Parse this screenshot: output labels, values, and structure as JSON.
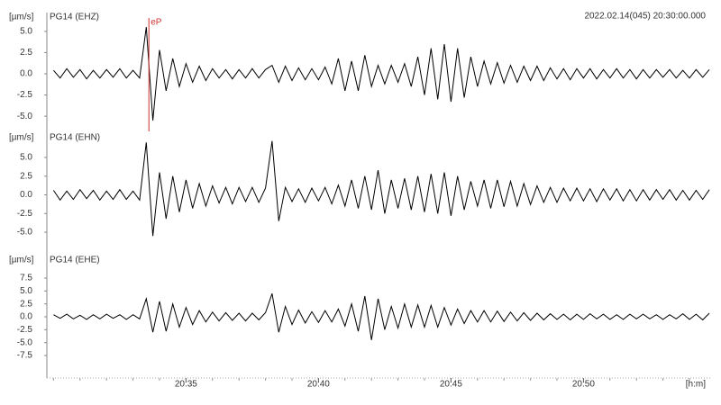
{
  "chart_data": {
    "type": "line",
    "timestamp": "2022.02.14(045) 20:30:00.000",
    "xlabel": "[h:m]",
    "ylabel": "[µm/s]",
    "xlim": [
      29.75,
      54.85
    ],
    "xticks": [
      {
        "value": 35,
        "label": "20:35"
      },
      {
        "value": 40,
        "label": "20:40"
      },
      {
        "value": 45,
        "label": "20:45"
      },
      {
        "value": 50,
        "label": "20:50"
      }
    ],
    "xminorticks": [
      30,
      31,
      32,
      33,
      34,
      35,
      36,
      37,
      38,
      39,
      40,
      41,
      42,
      43,
      44,
      45,
      46,
      47,
      48,
      49,
      50,
      51,
      52,
      53,
      54
    ],
    "x": [
      30,
      30.25,
      30.5,
      30.75,
      31,
      31.25,
      31.5,
      31.75,
      32,
      32.25,
      32.5,
      32.75,
      33,
      33.25,
      33.5,
      33.75,
      34,
      34.25,
      34.5,
      34.75,
      35,
      35.25,
      35.5,
      35.75,
      36,
      36.25,
      36.5,
      36.75,
      37,
      37.25,
      37.5,
      37.75,
      38,
      38.25,
      38.5,
      38.75,
      39,
      39.25,
      39.5,
      39.75,
      40,
      40.25,
      40.5,
      40.75,
      41,
      41.25,
      41.5,
      41.75,
      42,
      42.25,
      42.5,
      42.75,
      43,
      43.25,
      43.5,
      43.75,
      44,
      44.25,
      44.5,
      44.75,
      45,
      45.25,
      45.5,
      45.75,
      46,
      46.25,
      46.5,
      46.75,
      47,
      47.25,
      47.5,
      47.75,
      48,
      48.25,
      48.5,
      48.75,
      49,
      49.25,
      49.5,
      49.75,
      50,
      50.25,
      50.5,
      50.75,
      51,
      51.25,
      51.5,
      51.75,
      52,
      52.25,
      52.5,
      52.75,
      53,
      53.25,
      53.5,
      53.75,
      54,
      54.25,
      54.5,
      54.75
    ],
    "series": [
      {
        "name": "PG14 (EHZ)",
        "color": "#000000",
        "ylim": [
          -7,
          7
        ],
        "yticks": [
          {
            "value": 5,
            "label": "5.0"
          },
          {
            "value": 2.5,
            "label": "2.5"
          },
          {
            "value": 0,
            "label": "0.0"
          },
          {
            "value": -2.5,
            "label": "-2.5"
          },
          {
            "value": -5,
            "label": "-5.0"
          }
        ],
        "values": [
          0.4,
          -0.5,
          0.6,
          -0.4,
          0.5,
          -0.6,
          0.4,
          -0.5,
          0.5,
          -0.4,
          0.6,
          -0.5,
          0.4,
          -0.5,
          5.5,
          -5.5,
          2.8,
          -2.0,
          1.8,
          -1.5,
          1.2,
          -1.0,
          0.9,
          -0.8,
          0.6,
          -0.5,
          0.5,
          -0.6,
          0.5,
          -0.5,
          0.6,
          -0.5,
          0.5,
          1.0,
          -1.0,
          0.9,
          -0.8,
          0.7,
          -0.7,
          0.6,
          -0.7,
          0.8,
          -1.2,
          1.8,
          -2.0,
          1.5,
          -2.0,
          2.2,
          -1.5,
          1.0,
          -1.2,
          1.0,
          -1.0,
          1.2,
          -1.5,
          2.0,
          -2.5,
          3.0,
          -3.0,
          3.5,
          -3.3,
          3.0,
          -2.8,
          2.0,
          -1.5,
          1.5,
          -1.2,
          1.3,
          -1.1,
          1.0,
          -1.0,
          0.9,
          -0.8,
          0.9,
          -0.8,
          0.7,
          -0.6,
          0.6,
          -0.7,
          0.6,
          -0.5,
          0.6,
          -0.6,
          0.5,
          -0.5,
          0.6,
          -0.5,
          0.5,
          -0.6,
          0.5,
          -0.5,
          0.5,
          -0.4,
          0.5,
          -0.5,
          0.4,
          -0.5,
          0.5,
          -0.4,
          0.5
        ]
      },
      {
        "name": "PG14 (EHN)",
        "color": "#000000",
        "ylim": [
          -8,
          8
        ],
        "yticks": [
          {
            "value": 5,
            "label": "5.0"
          },
          {
            "value": 2.5,
            "label": "2.5"
          },
          {
            "value": 0,
            "label": "0.0"
          },
          {
            "value": -2.5,
            "label": "-2.5"
          },
          {
            "value": -5,
            "label": "-5.0"
          }
        ],
        "values": [
          0.6,
          -0.7,
          0.5,
          -0.6,
          0.7,
          -0.5,
          0.6,
          -0.7,
          0.5,
          -0.6,
          0.7,
          -0.6,
          0.5,
          -0.7,
          7.0,
          -5.5,
          3.0,
          -3.2,
          2.5,
          -2.3,
          2.0,
          -1.8,
          1.5,
          -1.5,
          1.2,
          -1.1,
          1.0,
          -1.2,
          1.0,
          -0.9,
          1.0,
          -1.0,
          0.9,
          7.2,
          -3.5,
          1.0,
          -0.9,
          0.8,
          -1.0,
          0.9,
          -0.8,
          1.0,
          -1.2,
          1.3,
          -1.5,
          2.0,
          -1.8,
          2.5,
          -2.0,
          3.3,
          -2.5,
          2.0,
          -1.8,
          2.2,
          -2.0,
          2.5,
          -2.3,
          2.8,
          -2.5,
          3.0,
          -2.8,
          2.5,
          -2.0,
          1.8,
          -1.5,
          2.0,
          -1.8,
          2.0,
          -1.6,
          1.8,
          -1.5,
          1.5,
          -1.3,
          1.2,
          -1.0,
          1.0,
          -1.0,
          0.9,
          -0.8,
          0.9,
          -0.8,
          0.8,
          -0.9,
          0.8,
          -0.7,
          0.8,
          -0.8,
          0.7,
          -0.8,
          0.7,
          -0.7,
          0.7,
          -0.6,
          0.7,
          -0.7,
          0.6,
          -0.7,
          0.6,
          -0.6,
          0.7
        ]
      },
      {
        "name": "PG14 (EHE)",
        "color": "#000000",
        "ylim": [
          -11.5,
          11.5
        ],
        "yticks": [
          {
            "value": 7.5,
            "label": "7.5"
          },
          {
            "value": 5,
            "label": "5.0"
          },
          {
            "value": 2.5,
            "label": "2.5"
          },
          {
            "value": 0,
            "label": "0.0"
          },
          {
            "value": -2.5,
            "label": "-2.5"
          },
          {
            "value": -5,
            "label": "-5.0"
          },
          {
            "value": -7.5,
            "label": "-7.5"
          }
        ],
        "values": [
          0.4,
          -0.3,
          0.5,
          -0.4,
          0.3,
          -0.5,
          0.4,
          -0.4,
          0.5,
          -0.3,
          0.4,
          -0.5,
          0.4,
          -0.4,
          3.5,
          -3.0,
          3.0,
          -2.8,
          2.5,
          -2.0,
          1.8,
          -1.5,
          1.2,
          -1.0,
          0.9,
          -0.8,
          0.8,
          -0.7,
          0.7,
          -0.8,
          0.7,
          -0.6,
          0.8,
          4.5,
          -3.0,
          2.0,
          -1.5,
          1.3,
          -1.2,
          1.0,
          -1.1,
          1.2,
          -1.0,
          1.5,
          -1.8,
          2.5,
          -2.8,
          4.0,
          -4.5,
          3.5,
          -2.5,
          2.0,
          -2.2,
          2.5,
          -2.0,
          2.3,
          -2.0,
          2.2,
          -2.0,
          1.8,
          -1.6,
          1.5,
          -1.3,
          1.2,
          -1.0,
          1.2,
          -1.0,
          1.1,
          -0.9,
          0.9,
          -0.8,
          0.8,
          -0.7,
          0.7,
          -0.6,
          0.6,
          -0.5,
          0.5,
          -0.6,
          0.5,
          -0.5,
          0.6,
          -0.4,
          0.5,
          -0.5,
          0.4,
          -0.5,
          0.5,
          -0.4,
          0.5,
          -0.4,
          0.4,
          -0.5,
          0.4,
          -0.4,
          0.6,
          -0.5,
          0.5,
          -0.6,
          0.7
        ]
      }
    ],
    "annotations": [
      {
        "text": "eP",
        "x": 33.6,
        "series": 0,
        "color": "#d03030"
      }
    ]
  }
}
